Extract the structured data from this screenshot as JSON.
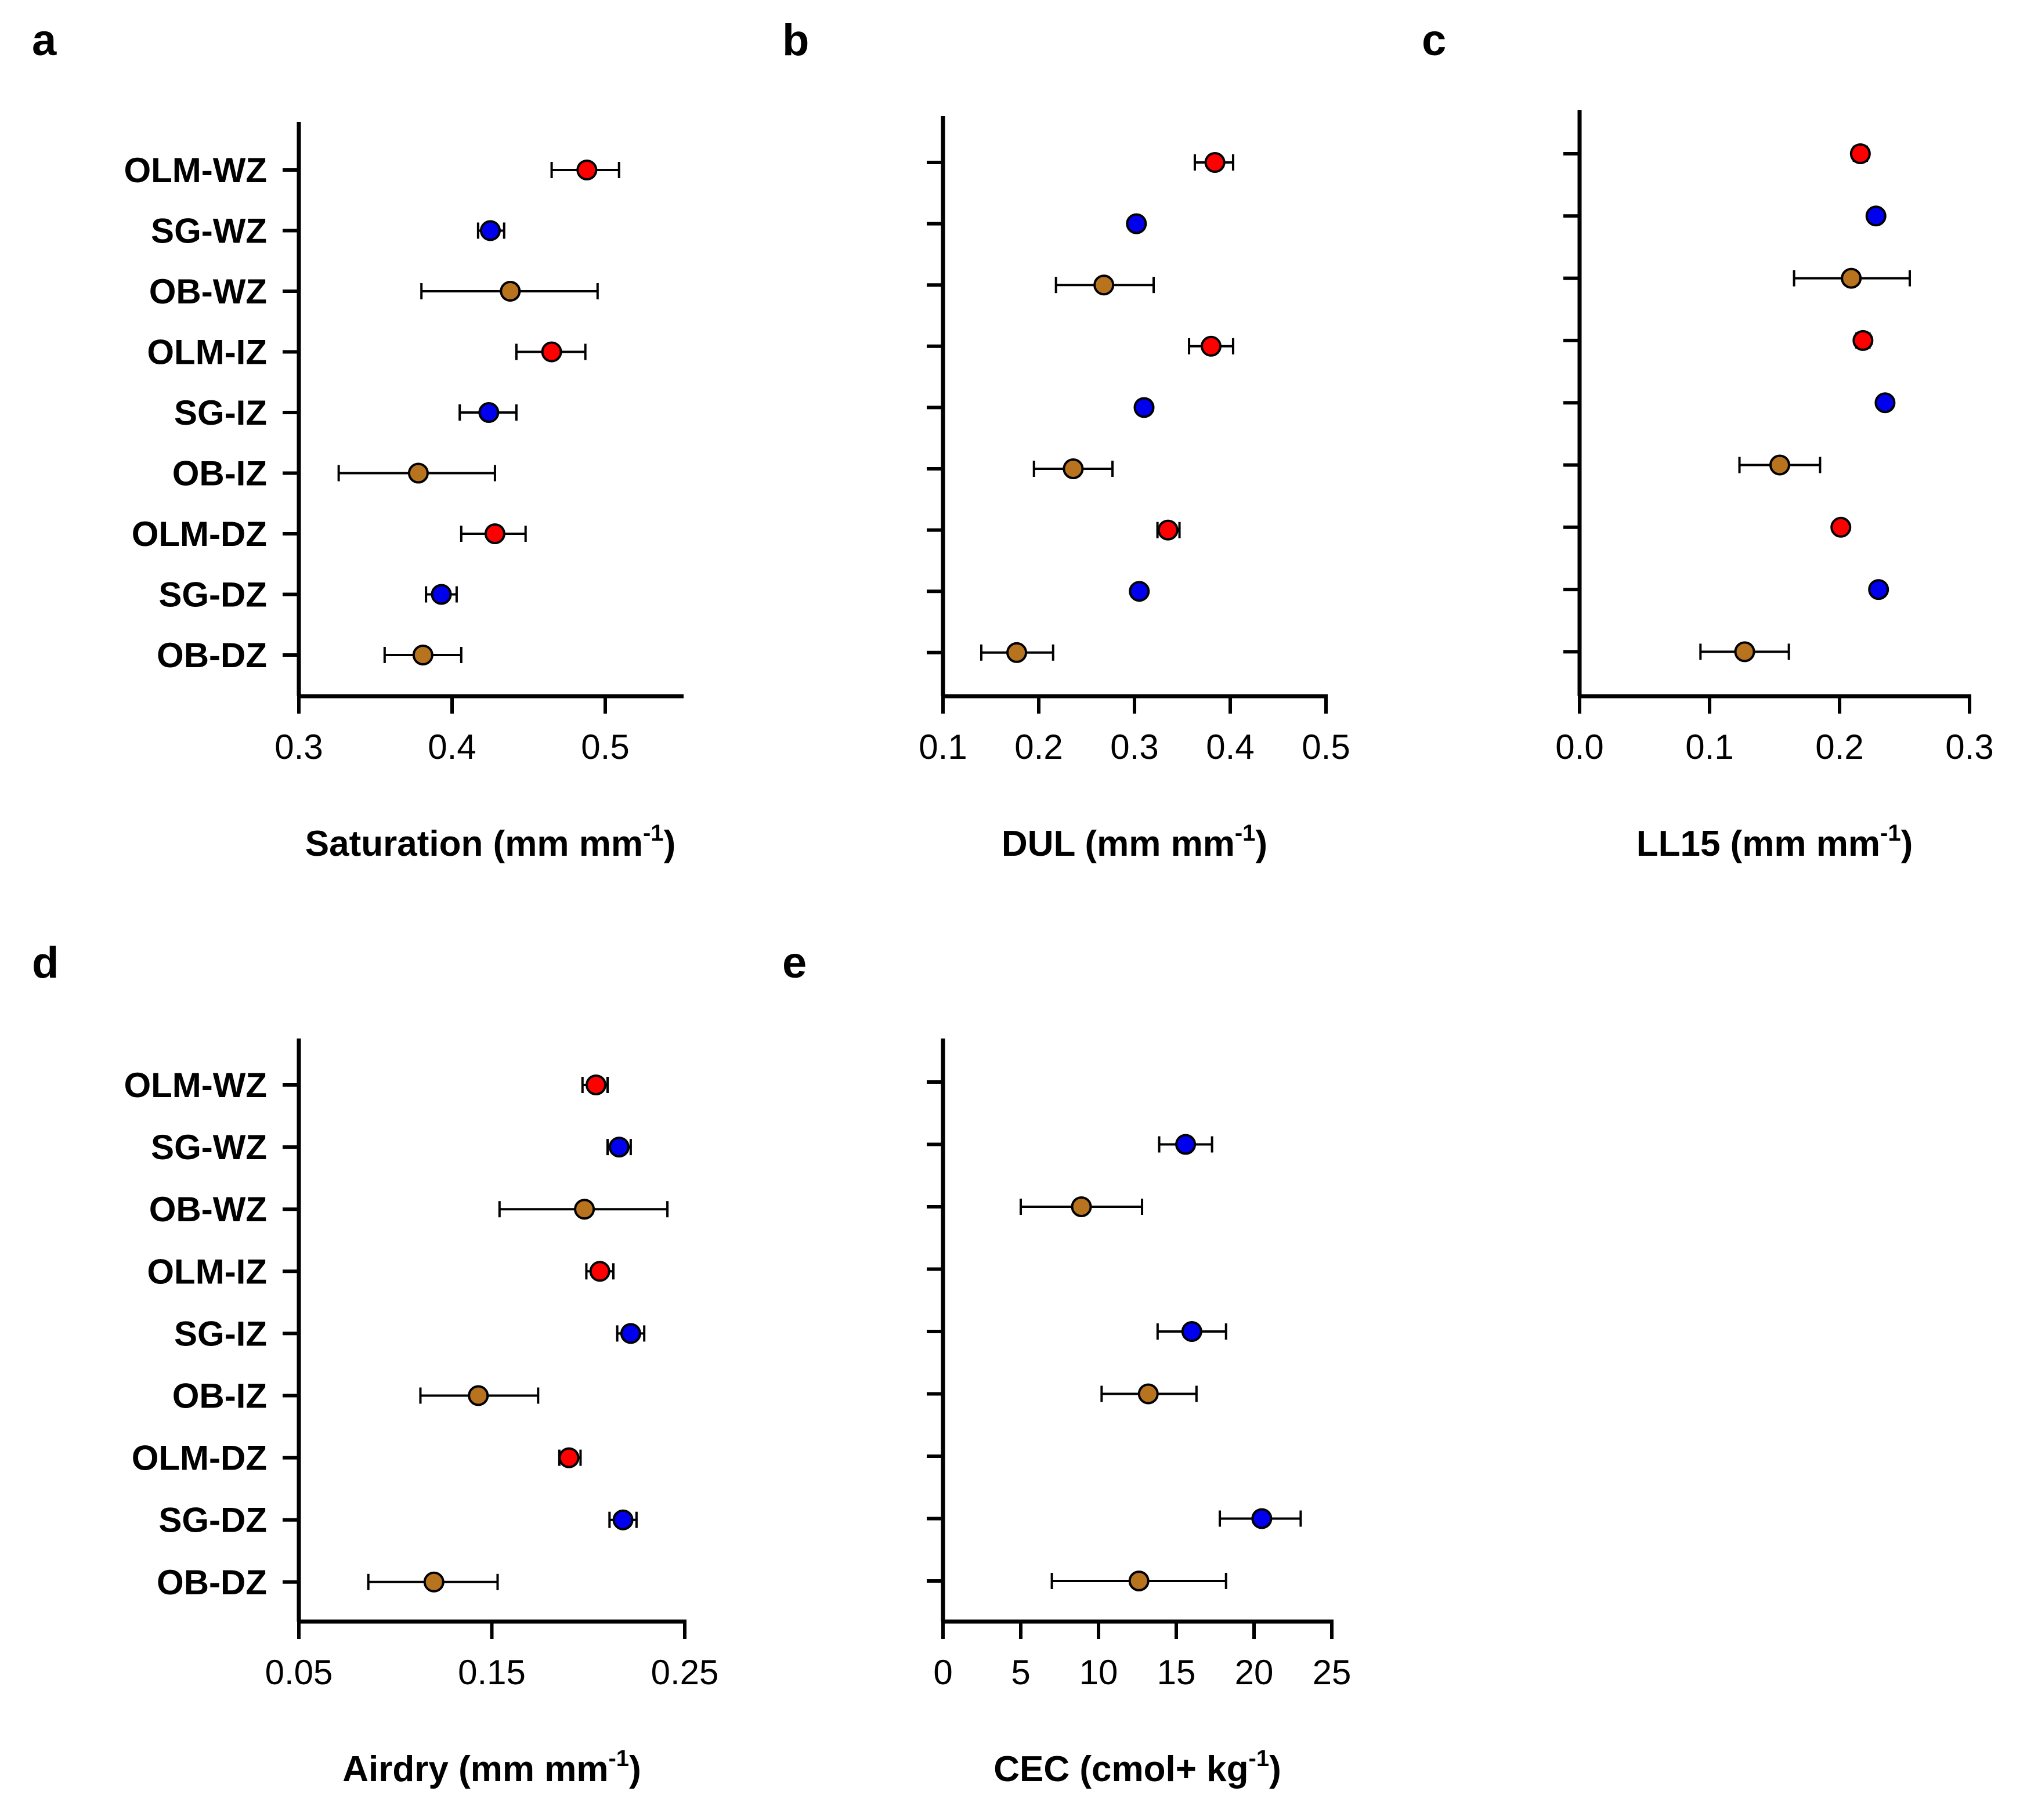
{
  "figure": {
    "categories": [
      "OLM-WZ",
      "SG-WZ",
      "OB-WZ",
      "OLM-IZ",
      "SG-IZ",
      "OB-IZ",
      "OLM-DZ",
      "SG-DZ",
      "OB-DZ"
    ],
    "colors": {
      "OLM": "#ff0000",
      "SG": "#0000ee",
      "OB": "#b8731e"
    }
  },
  "chart_data": [
    {
      "panel": "a",
      "type": "scatter",
      "xlabel": "Saturation (mm mm",
      "xlabel_sup": "-1",
      "xlabel_end": ")",
      "xlim": [
        0.3,
        0.55
      ],
      "xticks": [
        0.3,
        0.4,
        0.5
      ],
      "xtick_labels": [
        "0.3",
        "0.4",
        "0.5"
      ],
      "show_category_labels": true,
      "series": [
        {
          "category": "OLM-WZ",
          "group": "OLM",
          "value": 0.488,
          "err_low": 0.465,
          "err_high": 0.509
        },
        {
          "category": "SG-WZ",
          "group": "SG",
          "value": 0.425,
          "err_low": 0.417,
          "err_high": 0.434
        },
        {
          "category": "OB-WZ",
          "group": "OB",
          "value": 0.438,
          "err_low": 0.38,
          "err_high": 0.495
        },
        {
          "category": "OLM-IZ",
          "group": "OLM",
          "value": 0.465,
          "err_low": 0.442,
          "err_high": 0.487
        },
        {
          "category": "SG-IZ",
          "group": "SG",
          "value": 0.424,
          "err_low": 0.405,
          "err_high": 0.442
        },
        {
          "category": "OB-IZ",
          "group": "OB",
          "value": 0.378,
          "err_low": 0.326,
          "err_high": 0.428
        },
        {
          "category": "OLM-DZ",
          "group": "OLM",
          "value": 0.428,
          "err_low": 0.406,
          "err_high": 0.448
        },
        {
          "category": "SG-DZ",
          "group": "SG",
          "value": 0.393,
          "err_low": 0.383,
          "err_high": 0.403
        },
        {
          "category": "OB-DZ",
          "group": "OB",
          "value": 0.381,
          "err_low": 0.356,
          "err_high": 0.406
        }
      ]
    },
    {
      "panel": "b",
      "type": "scatter",
      "xlabel": "DUL (mm mm",
      "xlabel_sup": "-1",
      "xlabel_end": ")",
      "xlim": [
        0.1,
        0.5
      ],
      "xticks": [
        0.1,
        0.2,
        0.3,
        0.4,
        0.5
      ],
      "xtick_labels": [
        "0.1",
        "0.2",
        "0.3",
        "0.4",
        "0.5"
      ],
      "show_category_labels": false,
      "series": [
        {
          "category": "OLM-WZ",
          "group": "OLM",
          "value": 0.384,
          "err_low": 0.363,
          "err_high": 0.403
        },
        {
          "category": "SG-WZ",
          "group": "SG",
          "value": 0.302,
          "err_low": 0.297,
          "err_high": 0.307
        },
        {
          "category": "OB-WZ",
          "group": "OB",
          "value": 0.268,
          "err_low": 0.218,
          "err_high": 0.32
        },
        {
          "category": "OLM-IZ",
          "group": "OLM",
          "value": 0.38,
          "err_low": 0.357,
          "err_high": 0.403
        },
        {
          "category": "SG-IZ",
          "group": "SG",
          "value": 0.31,
          "err_low": 0.304,
          "err_high": 0.316
        },
        {
          "category": "OB-IZ",
          "group": "OB",
          "value": 0.236,
          "err_low": 0.195,
          "err_high": 0.277
        },
        {
          "category": "OLM-DZ",
          "group": "OLM",
          "value": 0.335,
          "err_low": 0.324,
          "err_high": 0.347
        },
        {
          "category": "SG-DZ",
          "group": "SG",
          "value": 0.305,
          "err_low": 0.3,
          "err_high": 0.31
        },
        {
          "category": "OB-DZ",
          "group": "OB",
          "value": 0.177,
          "err_low": 0.14,
          "err_high": 0.215
        }
      ]
    },
    {
      "panel": "c",
      "type": "scatter",
      "xlabel": "LL15 (mm mm",
      "xlabel_sup": "-1",
      "xlabel_end": ")",
      "xlim": [
        0.0,
        0.3
      ],
      "xticks": [
        0.0,
        0.1,
        0.2,
        0.3
      ],
      "xtick_labels": [
        "0.0",
        "0.1",
        "0.2",
        "0.3"
      ],
      "show_category_labels": false,
      "series": [
        {
          "category": "OLM-WZ",
          "group": "OLM",
          "value": 0.216,
          "err_low": 0.211,
          "err_high": 0.221
        },
        {
          "category": "SG-WZ",
          "group": "SG",
          "value": 0.228,
          "err_low": 0.225,
          "err_high": 0.231
        },
        {
          "category": "OB-WZ",
          "group": "OB",
          "value": 0.209,
          "err_low": 0.165,
          "err_high": 0.254
        },
        {
          "category": "OLM-IZ",
          "group": "OLM",
          "value": 0.218,
          "err_low": 0.213,
          "err_high": 0.223
        },
        {
          "category": "SG-IZ",
          "group": "SG",
          "value": 0.235,
          "err_low": 0.231,
          "err_high": 0.239
        },
        {
          "category": "OB-IZ",
          "group": "OB",
          "value": 0.154,
          "err_low": 0.123,
          "err_high": 0.185
        },
        {
          "category": "OLM-DZ",
          "group": "OLM",
          "value": 0.201,
          "err_low": 0.198,
          "err_high": 0.204
        },
        {
          "category": "SG-DZ",
          "group": "SG",
          "value": 0.23,
          "err_low": 0.226,
          "err_high": 0.234
        },
        {
          "category": "OB-DZ",
          "group": "OB",
          "value": 0.127,
          "err_low": 0.093,
          "err_high": 0.161
        }
      ]
    },
    {
      "panel": "d",
      "type": "scatter",
      "xlabel": "Airdry (mm mm",
      "xlabel_sup": "-1",
      "xlabel_end": ")",
      "xlim": [
        0.05,
        0.25
      ],
      "xticks": [
        0.05,
        0.15,
        0.25
      ],
      "xtick_labels": [
        "0.05",
        "0.15",
        "0.25"
      ],
      "show_category_labels": true,
      "series": [
        {
          "category": "OLM-WZ",
          "group": "OLM",
          "value": 0.204,
          "err_low": 0.197,
          "err_high": 0.21
        },
        {
          "category": "SG-WZ",
          "group": "SG",
          "value": 0.216,
          "err_low": 0.21,
          "err_high": 0.222
        },
        {
          "category": "OB-WZ",
          "group": "OB",
          "value": 0.198,
          "err_low": 0.154,
          "err_high": 0.241
        },
        {
          "category": "OLM-IZ",
          "group": "OLM",
          "value": 0.206,
          "err_low": 0.199,
          "err_high": 0.213
        },
        {
          "category": "SG-IZ",
          "group": "SG",
          "value": 0.222,
          "err_low": 0.215,
          "err_high": 0.229
        },
        {
          "category": "OB-IZ",
          "group": "OB",
          "value": 0.143,
          "err_low": 0.113,
          "err_high": 0.174
        },
        {
          "category": "OLM-DZ",
          "group": "OLM",
          "value": 0.19,
          "err_low": 0.185,
          "err_high": 0.196
        },
        {
          "category": "SG-DZ",
          "group": "SG",
          "value": 0.218,
          "err_low": 0.211,
          "err_high": 0.225
        },
        {
          "category": "OB-DZ",
          "group": "OB",
          "value": 0.12,
          "err_low": 0.086,
          "err_high": 0.153
        }
      ]
    },
    {
      "panel": "e",
      "type": "scatter",
      "xlabel": "CEC (cmol+ kg",
      "xlabel_sup": "-1",
      "xlabel_end": ")",
      "xlim": [
        0,
        25
      ],
      "xticks": [
        0,
        5,
        10,
        15,
        20,
        25
      ],
      "xtick_labels": [
        "0",
        "5",
        "10",
        "15",
        "20",
        "25"
      ],
      "show_category_labels": false,
      "series": [
        {
          "category": "SG-WZ",
          "group": "SG",
          "value": 15.6,
          "err_low": 13.9,
          "err_high": 17.3
        },
        {
          "category": "OB-WZ",
          "group": "OB",
          "value": 8.9,
          "err_low": 5.0,
          "err_high": 12.8
        },
        {
          "category": "SG-IZ",
          "group": "SG",
          "value": 16.0,
          "err_low": 13.8,
          "err_high": 18.2
        },
        {
          "category": "OB-IZ",
          "group": "OB",
          "value": 13.2,
          "err_low": 10.2,
          "err_high": 16.3
        },
        {
          "category": "SG-DZ",
          "group": "SG",
          "value": 20.5,
          "err_low": 17.8,
          "err_high": 23.0
        },
        {
          "category": "OB-DZ",
          "group": "OB",
          "value": 12.6,
          "err_low": 7.0,
          "err_high": 18.2
        }
      ]
    }
  ]
}
